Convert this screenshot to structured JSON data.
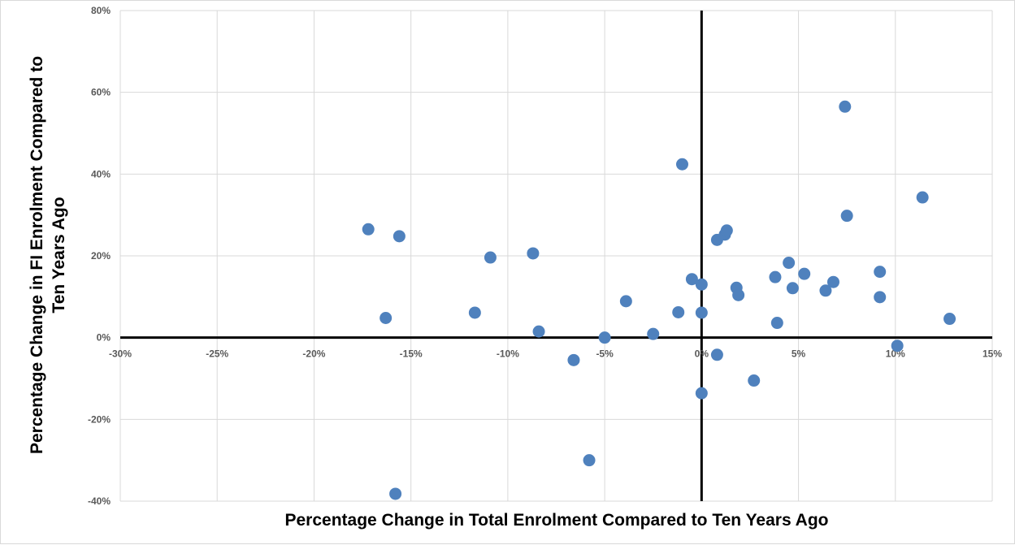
{
  "chart_data": {
    "type": "scatter",
    "title": "",
    "xlabel": "Percentage Change in Total Enrolment Compared to Ten Years Ago",
    "ylabel_lines": [
      "Percentage Change in FI Enrolment Compared to",
      "Ten Years Ago"
    ],
    "xlim": [
      -30,
      15
    ],
    "ylim": [
      -40,
      80
    ],
    "x_ticks": [
      -30,
      -25,
      -20,
      -15,
      -10,
      -5,
      0,
      5,
      10,
      15
    ],
    "x_tick_labels": [
      "-30%",
      "-25%",
      "-20%",
      "-15%",
      "-10%",
      "-5%",
      "0%",
      "5%",
      "10%",
      "15%"
    ],
    "y_ticks": [
      -40,
      -20,
      0,
      20,
      40,
      60,
      80
    ],
    "y_tick_labels": [
      "-40%",
      "-20%",
      "0%",
      "20%",
      "40%",
      "60%",
      "80%"
    ],
    "grid": true,
    "legend": "none",
    "marker_color": "#4f81bd",
    "axis_line_color": "#000000",
    "grid_color": "#d9d9d9",
    "points": [
      {
        "x": -17.2,
        "y": 26.5
      },
      {
        "x": -15.6,
        "y": 24.8
      },
      {
        "x": -16.3,
        "y": 4.8
      },
      {
        "x": -15.8,
        "y": -38.2
      },
      {
        "x": -11.7,
        "y": 6.1
      },
      {
        "x": -10.9,
        "y": 19.6
      },
      {
        "x": -8.7,
        "y": 20.6
      },
      {
        "x": -8.4,
        "y": 1.5
      },
      {
        "x": -6.6,
        "y": -5.5
      },
      {
        "x": -5.8,
        "y": -30.0
      },
      {
        "x": -5.0,
        "y": 0.0
      },
      {
        "x": -3.9,
        "y": 8.9
      },
      {
        "x": -2.5,
        "y": 0.9
      },
      {
        "x": -1.2,
        "y": 6.2
      },
      {
        "x": -1.0,
        "y": 42.4
      },
      {
        "x": -0.5,
        "y": 14.3
      },
      {
        "x": 0.0,
        "y": 13.0
      },
      {
        "x": 0.0,
        "y": 6.1
      },
      {
        "x": 0.0,
        "y": -13.6
      },
      {
        "x": 0.8,
        "y": -4.2
      },
      {
        "x": 0.8,
        "y": 23.9
      },
      {
        "x": 1.2,
        "y": 25.2
      },
      {
        "x": 1.3,
        "y": 26.2
      },
      {
        "x": 1.8,
        "y": 12.2
      },
      {
        "x": 1.9,
        "y": 10.4
      },
      {
        "x": 2.7,
        "y": -10.5
      },
      {
        "x": 3.8,
        "y": 14.8
      },
      {
        "x": 3.9,
        "y": 3.6
      },
      {
        "x": 4.5,
        "y": 18.3
      },
      {
        "x": 4.7,
        "y": 12.1
      },
      {
        "x": 5.3,
        "y": 15.6
      },
      {
        "x": 6.4,
        "y": 11.5
      },
      {
        "x": 6.8,
        "y": 13.6
      },
      {
        "x": 7.4,
        "y": 56.5
      },
      {
        "x": 7.5,
        "y": 29.8
      },
      {
        "x": 9.2,
        "y": 16.1
      },
      {
        "x": 9.2,
        "y": 9.9
      },
      {
        "x": 10.1,
        "y": -2.0
      },
      {
        "x": 11.4,
        "y": 34.3
      },
      {
        "x": 12.8,
        "y": 4.6
      }
    ]
  }
}
